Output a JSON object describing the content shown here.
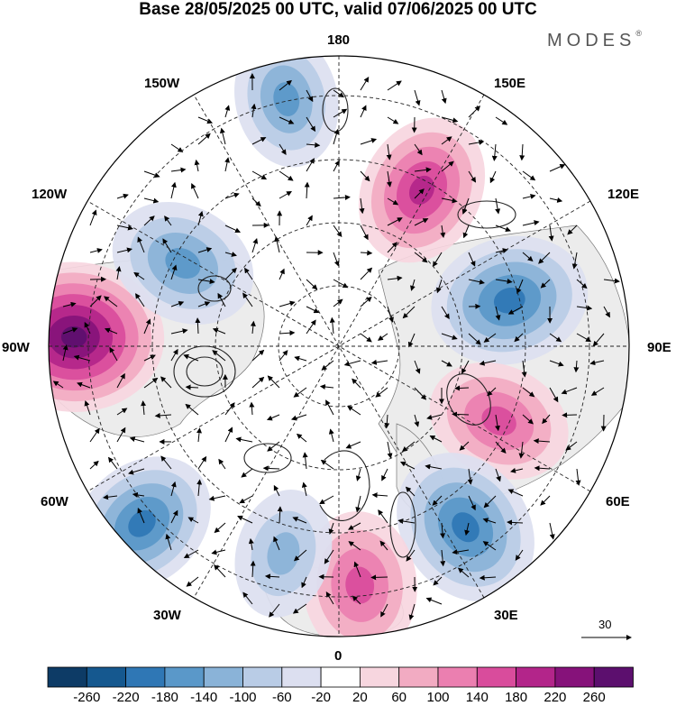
{
  "title": "Base 28/05/2025 00 UTC, valid 07/06/2025 00 UTC",
  "logo": "MODES",
  "logo_mark": "®",
  "lon_labels": {
    "n180": "180",
    "e150": "150E",
    "e120": "120E",
    "e90": "90E",
    "e60": "60E",
    "e30": "30E",
    "s0": "0",
    "w30": "30W",
    "w60": "60W",
    "w90": "90W",
    "w120": "120W",
    "w150": "150W"
  },
  "vector_reference": "30",
  "colorbar": {
    "labels": [
      "-260",
      "-220",
      "-180",
      "-140",
      "-100",
      "-60",
      "-20",
      "20",
      "60",
      "100",
      "140",
      "180",
      "220",
      "260"
    ],
    "colors": [
      "#0d3b66",
      "#15588f",
      "#2f77b5",
      "#5a98c9",
      "#8ab3d8",
      "#b9cce6",
      "#dcdff0",
      "#ffffff",
      "#f7d6df",
      "#f2abc2",
      "#eb7fb0",
      "#d94c9c",
      "#b3258a",
      "#86127a",
      "#5c0f6e"
    ]
  },
  "anomaly_centers": [
    {
      "lon": 105,
      "lat": 62,
      "value": -200
    },
    {
      "lon": 152,
      "lat": 62,
      "value": 180
    },
    {
      "lon": 65,
      "lat": 62,
      "value": 160
    },
    {
      "lon": 35,
      "lat": 55,
      "value": -200
    },
    {
      "lon": 5,
      "lat": 52,
      "value": 170
    },
    {
      "lon": -15,
      "lat": 56,
      "value": -120
    },
    {
      "lon": -48,
      "lat": 48,
      "value": -180
    },
    {
      "lon": -92,
      "lat": 48,
      "value": 260
    },
    {
      "lon": -118,
      "lat": 62,
      "value": -170
    },
    {
      "lon": -168,
      "lat": 50,
      "value": -140
    }
  ]
}
